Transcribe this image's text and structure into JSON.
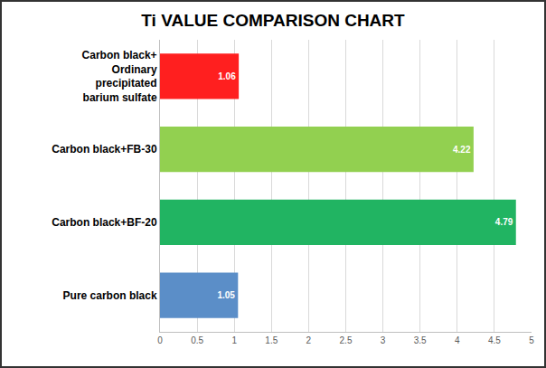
{
  "chart_data": {
    "type": "bar",
    "title": "Ti VALUE COMPARISON CHART",
    "orientation": "horizontal",
    "categories": [
      "Carbon black+ Ordinary precipitated barium sulfate",
      "Carbon black+FB-30",
      "Carbon black+BF-20",
      "Pure carbon black"
    ],
    "values": [
      1.06,
      4.22,
      4.79,
      1.05
    ],
    "colors": [
      "#ff1f1f",
      "#92d050",
      "#21b462",
      "#5b8ec8"
    ],
    "xlim": [
      0,
      5
    ],
    "xticks": [
      0,
      0.5,
      1,
      1.5,
      2,
      2.5,
      3,
      3.5,
      4,
      4.5,
      5
    ],
    "grid": true,
    "data_labels": true
  }
}
